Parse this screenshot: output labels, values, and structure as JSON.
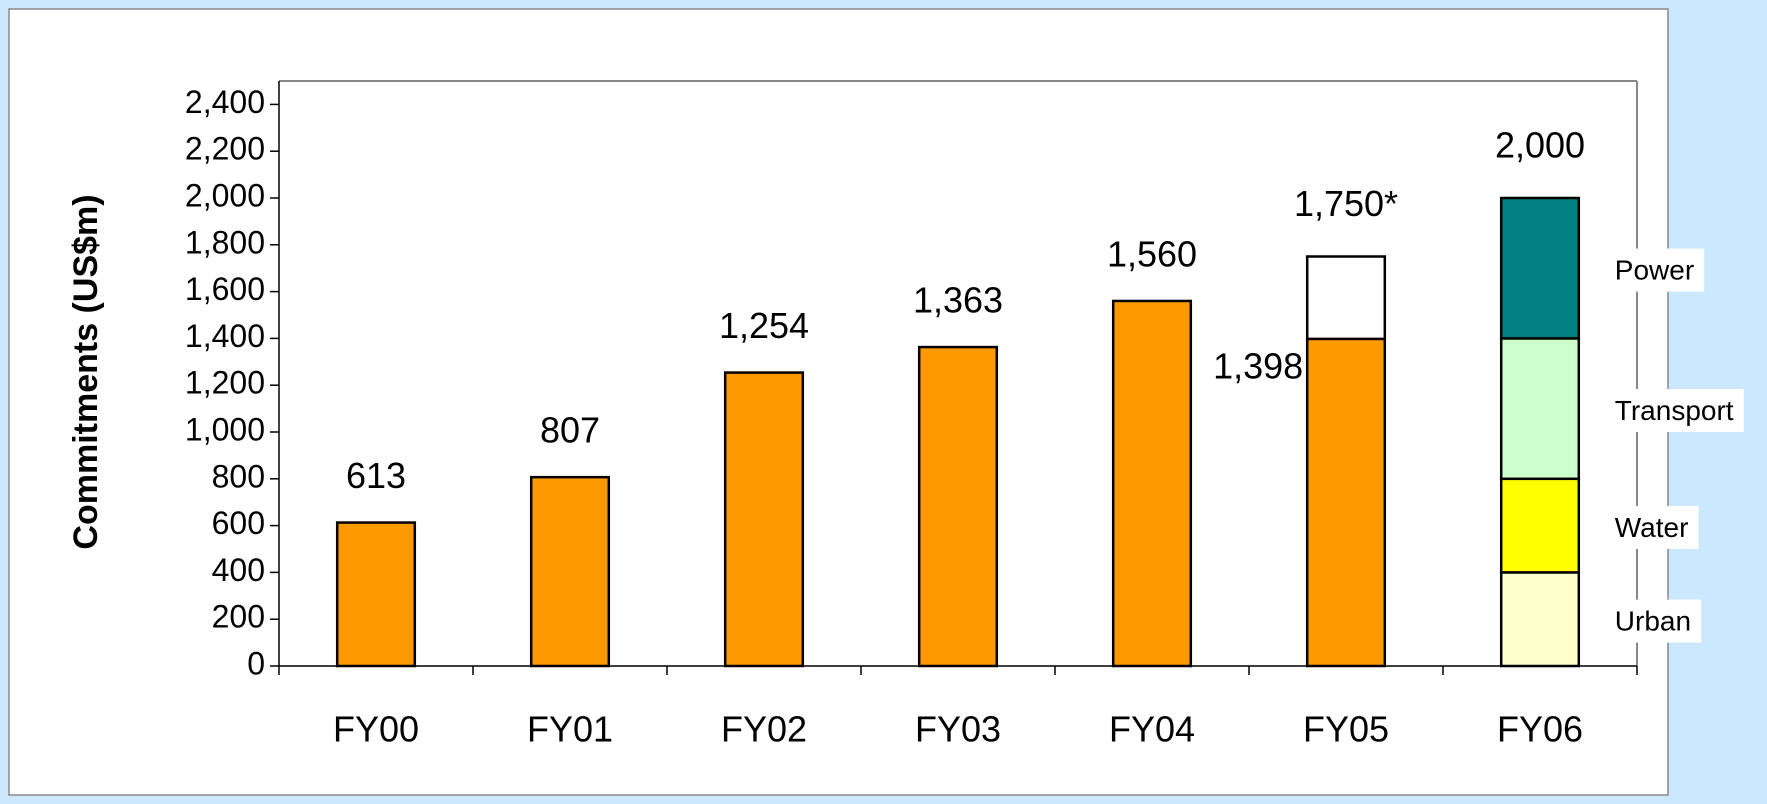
{
  "chart_data": {
    "type": "stacked_bar",
    "y_label": "Commitments (US$m)",
    "categories": [
      "FY00",
      "FY01",
      "FY02",
      "FY03",
      "FY04",
      "FY05",
      "FY06"
    ],
    "series": [
      {
        "color": "#ff9900",
        "values": [
          613,
          807,
          1254,
          1363,
          1560,
          1398,
          null
        ],
        "value_labels": [
          "613",
          "807",
          "1,254",
          "1,363",
          "1,560",
          "1,398",
          null
        ]
      },
      {
        "color": "#ffffff",
        "values": [
          null,
          null,
          null,
          null,
          null,
          352,
          null
        ]
      },
      {
        "name": "Urban",
        "color": "#ffffcc",
        "values": [
          null,
          null,
          null,
          null,
          null,
          null,
          400
        ]
      },
      {
        "name": "Water",
        "color": "#ffff00",
        "values": [
          null,
          null,
          null,
          null,
          null,
          null,
          400
        ]
      },
      {
        "name": "Transport",
        "color": "#ccffcc",
        "values": [
          null,
          null,
          null,
          null,
          null,
          null,
          600
        ]
      },
      {
        "name": "Power",
        "color": "#008080",
        "values": [
          null,
          null,
          null,
          null,
          null,
          null,
          600
        ]
      }
    ],
    "totals": [
      null,
      null,
      null,
      null,
      null,
      1750,
      2000
    ],
    "total_labels": [
      null,
      null,
      null,
      null,
      null,
      "1,750*",
      "2,000"
    ],
    "ylim": [
      0,
      2500
    ],
    "yticks": [
      0,
      200,
      400,
      600,
      800,
      {
        "value": 1000,
        "label": "1,000"
      },
      {
        "value": 1200,
        "label": "1,200"
      },
      {
        "value": 1400,
        "label": "1,400"
      },
      {
        "value": 1600,
        "label": "1,600"
      },
      {
        "value": 1800,
        "label": "1,800"
      },
      {
        "value": 2000,
        "label": "2,000"
      },
      {
        "value": 2200,
        "label": "2,200"
      },
      {
        "value": 2400,
        "label": "2,400"
      }
    ],
    "grid": false
  }
}
